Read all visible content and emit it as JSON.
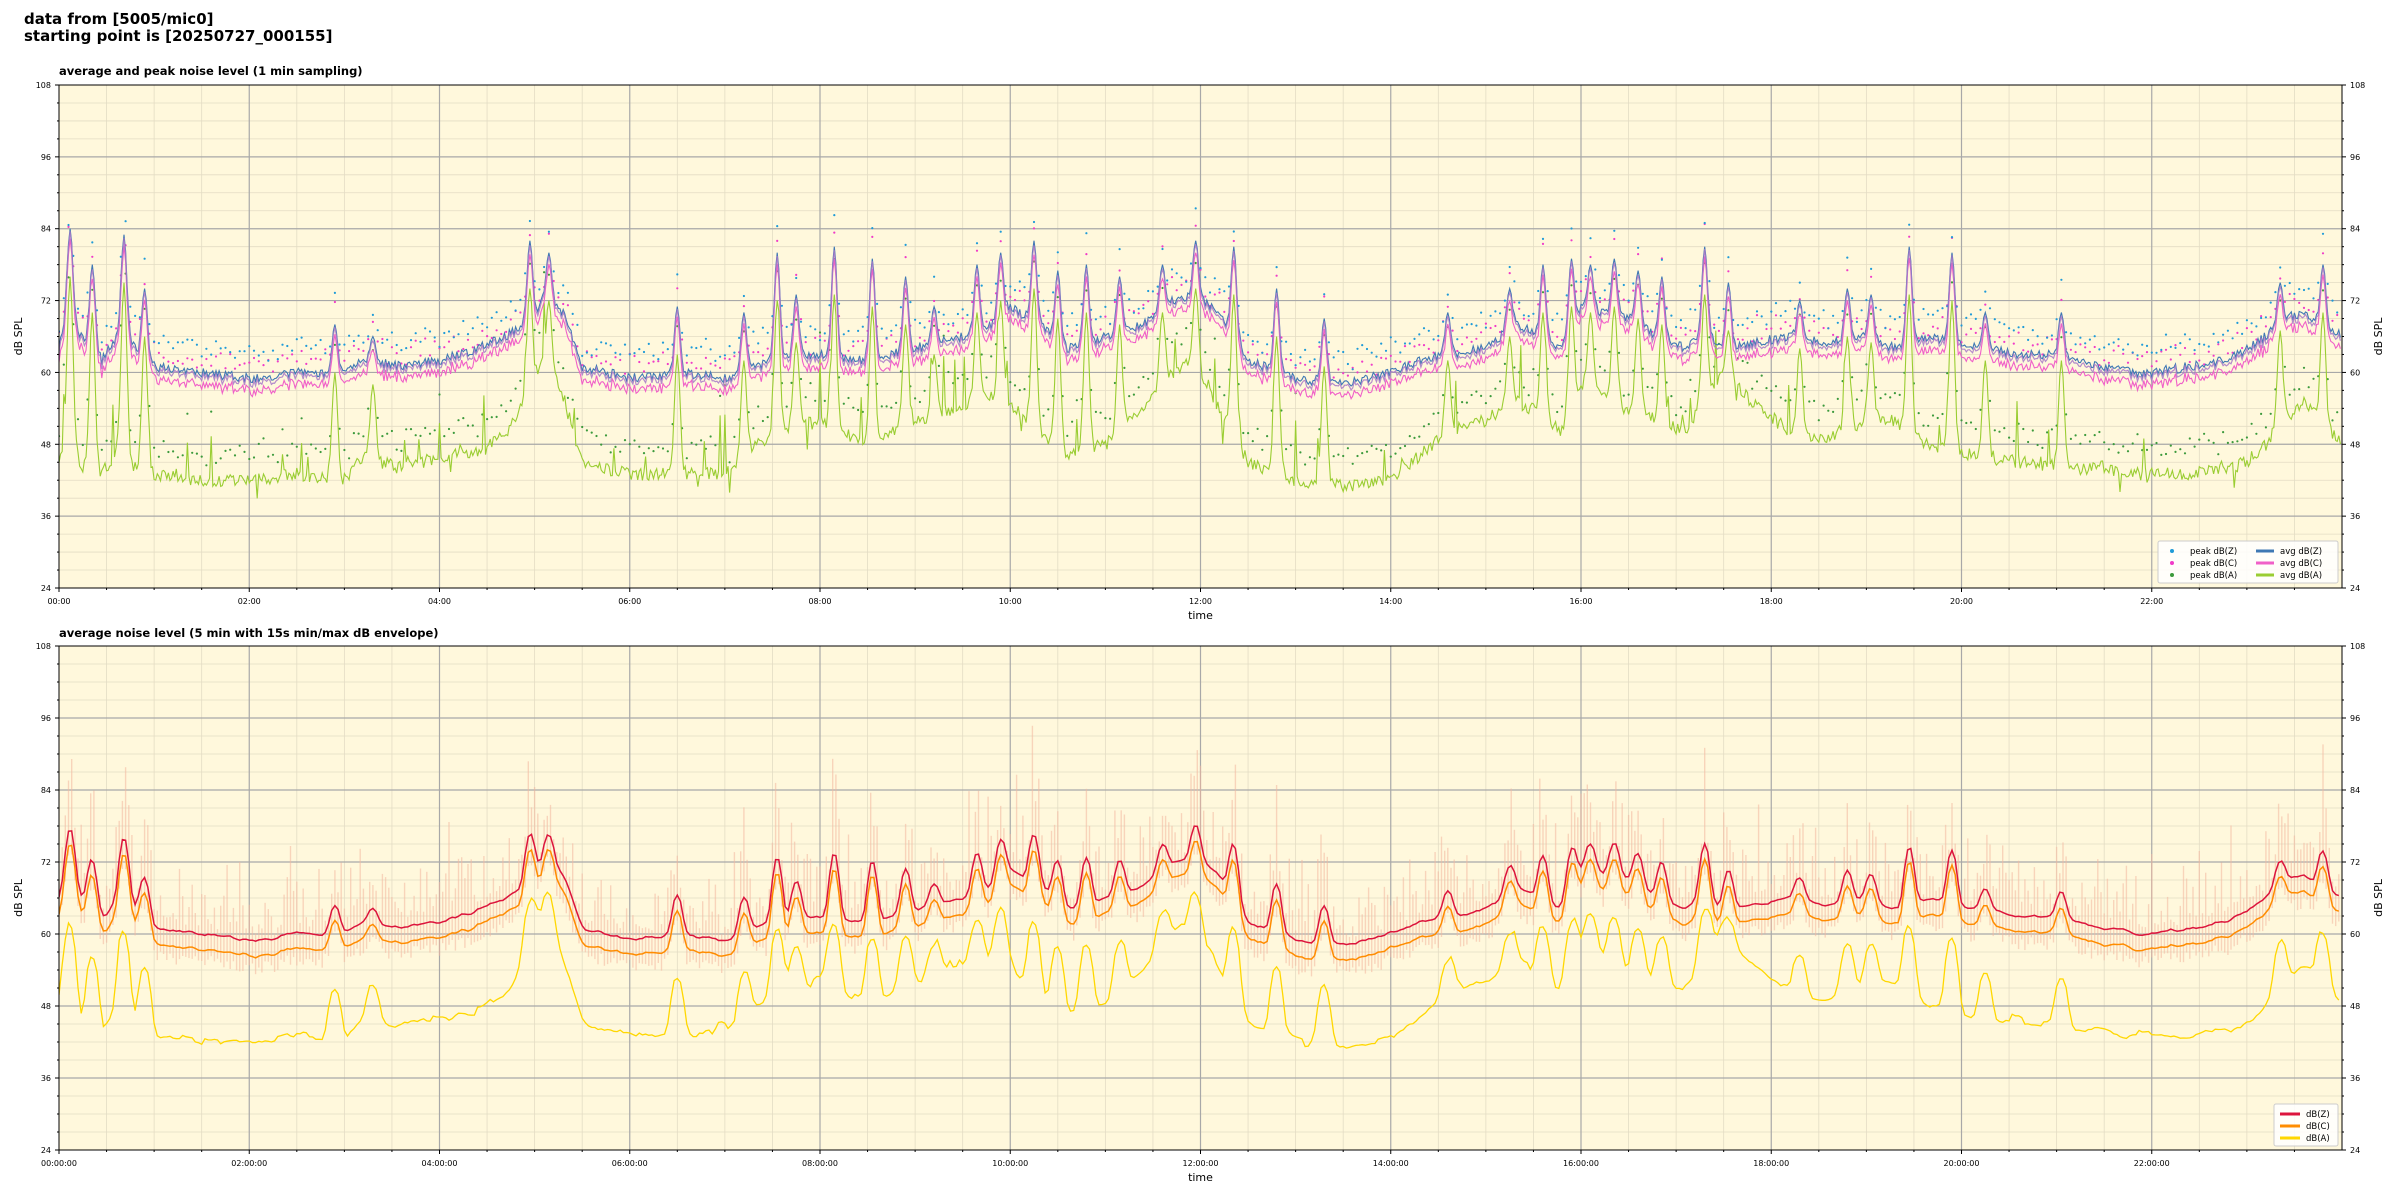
{
  "header": {
    "line1": "data from [5005/mic0]",
    "line2": "starting point is [20250727_000155]"
  },
  "colors": {
    "plot_bg": "#fff8dc",
    "grid_major": "#a8a8a8",
    "grid_minor": "#e3dcc4",
    "peak_z": "#1f9bd8",
    "peak_c": "#f03cc8",
    "peak_a": "#3c9a3c",
    "avg_z": "#3f78b4",
    "avg_c": "#f060c8",
    "avg_a": "#9acd32",
    "avg_zc_overlap": "#a878c8",
    "db_z": "#dc143c",
    "db_c": "#ff8c00",
    "db_a": "#ffd700",
    "envelope": "#f4b8a0"
  },
  "chart_data": [
    {
      "type": "line",
      "title": "average and peak noise level (1 min sampling)",
      "xlabel": "time",
      "ylabel": "dB SPL",
      "ylim": [
        24,
        108
      ],
      "yticks": [
        "24",
        "36",
        "48",
        "60",
        "72",
        "84",
        "96",
        "108"
      ],
      "xlim": [
        0,
        24
      ],
      "xticks": [
        "00:00",
        "02:00",
        "04:00",
        "06:00",
        "08:00",
        "10:00",
        "12:00",
        "14:00",
        "16:00",
        "18:00",
        "20:00",
        "22:00"
      ],
      "legend_position": "bottom-right",
      "series": [
        {
          "name": "peak dB(Z)",
          "style": "dots"
        },
        {
          "name": "peak dB(C)",
          "style": "dots"
        },
        {
          "name": "peak dB(A)",
          "style": "dots"
        },
        {
          "name": "avg dB(Z)",
          "style": "line"
        },
        {
          "name": "avg dB(C)",
          "style": "line"
        },
        {
          "name": "avg dB(A)",
          "style": "line"
        }
      ],
      "base_profile": {
        "x": [
          0,
          0.08,
          0.25,
          0.45,
          0.65,
          0.8,
          1.0,
          1.5,
          2.0,
          2.5,
          3.0,
          3.2,
          3.6,
          4.0,
          4.4,
          4.7,
          4.95,
          5.1,
          5.3,
          5.5,
          6.0,
          6.5,
          7.0,
          7.5,
          8.0,
          8.5,
          9.0,
          9.5,
          9.8,
          10.0,
          10.3,
          10.6,
          11.0,
          11.4,
          11.7,
          11.9,
          12.2,
          12.5,
          13.0,
          13.5,
          14.0,
          14.3,
          14.6,
          15.0,
          15.3,
          15.6,
          15.8,
          16.0,
          16.2,
          16.5,
          16.8,
          17.1,
          17.3,
          17.5,
          17.8,
          18.2,
          18.6,
          19.0,
          19.3,
          19.6,
          19.9,
          20.2,
          20.6,
          21.0,
          21.4,
          21.8,
          22.0,
          22.4,
          22.8,
          23.0,
          23.2,
          23.4,
          23.6,
          23.8,
          24.0
        ],
        "z": [
          64,
          69,
          66,
          62,
          67,
          64,
          61,
          60,
          59,
          60,
          60,
          62,
          61,
          62,
          64,
          66,
          69,
          72,
          70,
          61,
          59,
          60,
          59,
          62,
          63,
          62,
          64,
          66,
          68,
          71,
          68,
          64,
          66,
          68,
          72,
          73,
          70,
          62,
          59,
          58,
          60,
          62,
          63,
          64,
          68,
          66,
          64,
          71,
          70,
          69,
          66,
          64,
          67,
          64,
          65,
          66,
          65,
          66,
          64,
          66,
          65,
          64,
          63,
          63,
          61,
          60,
          60,
          61,
          62,
          64,
          66,
          69,
          70,
          68,
          66
        ],
        "a": [
          45,
          50,
          44,
          43,
          48,
          44,
          43,
          42,
          42,
          43,
          42,
          46,
          44,
          46,
          47,
          50,
          57,
          62,
          56,
          45,
          43,
          43,
          43,
          50,
          52,
          48,
          52,
          54,
          56,
          55,
          50,
          46,
          48,
          54,
          60,
          62,
          54,
          45,
          42,
          41,
          42,
          46,
          50,
          52,
          55,
          53,
          50,
          58,
          56,
          54,
          52,
          50,
          56,
          60,
          55,
          50,
          49,
          52,
          52,
          48,
          47,
          46,
          45,
          44,
          44,
          43,
          43,
          43,
          44,
          45,
          48,
          52,
          55,
          51,
          48
        ]
      },
      "spikes": [
        {
          "x": 0.12,
          "z": 84
        },
        {
          "x": 0.35,
          "z": 78
        },
        {
          "x": 0.68,
          "z": 83
        },
        {
          "x": 0.9,
          "z": 74
        },
        {
          "x": 2.9,
          "z": 68
        },
        {
          "x": 3.3,
          "z": 66
        },
        {
          "x": 4.95,
          "z": 82
        },
        {
          "x": 5.15,
          "z": 80
        },
        {
          "x": 6.5,
          "z": 71
        },
        {
          "x": 7.2,
          "z": 70
        },
        {
          "x": 7.55,
          "z": 80
        },
        {
          "x": 7.75,
          "z": 73
        },
        {
          "x": 8.15,
          "z": 81
        },
        {
          "x": 8.55,
          "z": 79
        },
        {
          "x": 8.9,
          "z": 76
        },
        {
          "x": 9.2,
          "z": 71
        },
        {
          "x": 9.65,
          "z": 78
        },
        {
          "x": 9.9,
          "z": 80
        },
        {
          "x": 10.25,
          "z": 82
        },
        {
          "x": 10.5,
          "z": 77
        },
        {
          "x": 10.8,
          "z": 78
        },
        {
          "x": 11.15,
          "z": 76
        },
        {
          "x": 11.6,
          "z": 78
        },
        {
          "x": 11.95,
          "z": 82
        },
        {
          "x": 12.35,
          "z": 81
        },
        {
          "x": 12.8,
          "z": 74
        },
        {
          "x": 13.3,
          "z": 69
        },
        {
          "x": 14.6,
          "z": 70
        },
        {
          "x": 15.25,
          "z": 74
        },
        {
          "x": 15.6,
          "z": 78
        },
        {
          "x": 15.9,
          "z": 79
        },
        {
          "x": 16.1,
          "z": 78
        },
        {
          "x": 16.35,
          "z": 79
        },
        {
          "x": 16.6,
          "z": 77
        },
        {
          "x": 16.85,
          "z": 76
        },
        {
          "x": 17.3,
          "z": 81
        },
        {
          "x": 17.55,
          "z": 75
        },
        {
          "x": 18.3,
          "z": 72
        },
        {
          "x": 18.8,
          "z": 74
        },
        {
          "x": 19.05,
          "z": 73
        },
        {
          "x": 19.45,
          "z": 81
        },
        {
          "x": 19.9,
          "z": 80
        },
        {
          "x": 20.25,
          "z": 70
        },
        {
          "x": 21.05,
          "z": 70
        },
        {
          "x": 23.35,
          "z": 75
        },
        {
          "x": 23.8,
          "z": 78
        }
      ]
    },
    {
      "type": "line",
      "title": "average noise level (5 min with 15s min/max dB envelope)",
      "xlabel": "time",
      "ylabel": "dB SPL",
      "ylim": [
        24,
        108
      ],
      "yticks": [
        "24",
        "36",
        "48",
        "60",
        "72",
        "84",
        "96",
        "108"
      ],
      "xlim": [
        0,
        24
      ],
      "xticks": [
        "00:00:00",
        "02:00:00",
        "04:00:00",
        "06:00:00",
        "08:00:00",
        "10:00:00",
        "12:00:00",
        "14:00:00",
        "16:00:00",
        "18:00:00",
        "20:00:00",
        "22:00:00"
      ],
      "legend_position": "bottom-right",
      "series": [
        {
          "name": "dB(Z)",
          "style": "line"
        },
        {
          "name": "dB(C)",
          "style": "line"
        },
        {
          "name": "dB(A)",
          "style": "line"
        }
      ]
    }
  ]
}
